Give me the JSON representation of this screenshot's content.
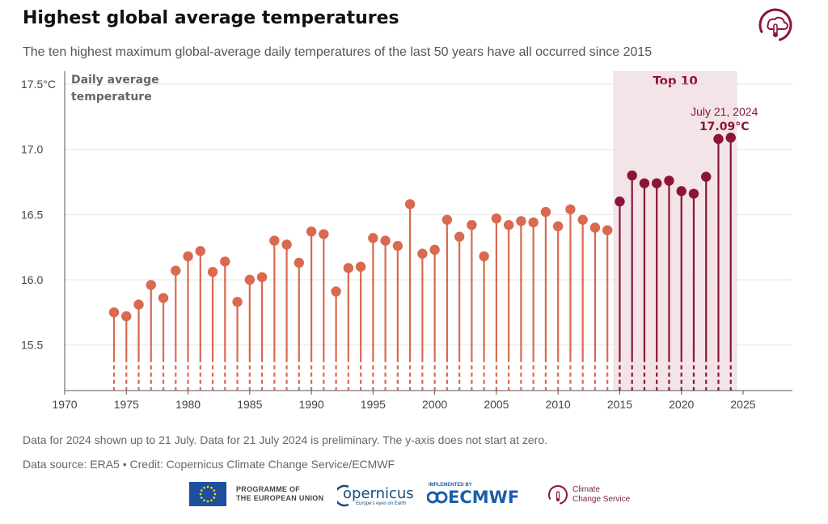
{
  "header": {
    "title": "Highest global average temperatures",
    "subtitle": "The ten highest maximum global-average daily temperatures of the last 50 years have all occurred since 2015"
  },
  "chart_data": {
    "type": "lollipop",
    "ylabel": "Daily average temperature",
    "ylabel_line1": "Daily average",
    "ylabel_line2": "temperature",
    "ylim": [
      15.15,
      17.6
    ],
    "xlim": [
      1970,
      2029
    ],
    "yticks": [
      {
        "value": 15.5,
        "label": "15.5"
      },
      {
        "value": 16.0,
        "label": "16.0"
      },
      {
        "value": 16.5,
        "label": "16.5"
      },
      {
        "value": 17.0,
        "label": "17.0"
      },
      {
        "value": 17.5,
        "label": "17.5°C"
      }
    ],
    "xticks": [
      1970,
      1975,
      1980,
      1985,
      1990,
      1995,
      2000,
      2005,
      2010,
      2015,
      2020,
      2025
    ],
    "top10_label": "Top 10",
    "top10_range": [
      2015,
      2024
    ],
    "highlight": {
      "date": "July 21, 2024",
      "value_label": "17.09°C",
      "year": 2024
    },
    "colors": {
      "regular": "#d9694f",
      "top10": "#8b1538",
      "band": "#f3e4e7",
      "grid": "#e6e6e6"
    },
    "points": [
      {
        "year": 1974,
        "value": 15.75
      },
      {
        "year": 1975,
        "value": 15.72
      },
      {
        "year": 1976,
        "value": 15.81
      },
      {
        "year": 1977,
        "value": 15.96
      },
      {
        "year": 1978,
        "value": 15.86
      },
      {
        "year": 1979,
        "value": 16.07
      },
      {
        "year": 1980,
        "value": 16.18
      },
      {
        "year": 1981,
        "value": 16.22
      },
      {
        "year": 1982,
        "value": 16.06
      },
      {
        "year": 1983,
        "value": 16.14
      },
      {
        "year": 1984,
        "value": 15.83
      },
      {
        "year": 1985,
        "value": 16.0
      },
      {
        "year": 1986,
        "value": 16.02
      },
      {
        "year": 1987,
        "value": 16.3
      },
      {
        "year": 1988,
        "value": 16.27
      },
      {
        "year": 1989,
        "value": 16.13
      },
      {
        "year": 1990,
        "value": 16.37
      },
      {
        "year": 1991,
        "value": 16.35
      },
      {
        "year": 1992,
        "value": 15.91
      },
      {
        "year": 1993,
        "value": 16.09
      },
      {
        "year": 1994,
        "value": 16.1
      },
      {
        "year": 1995,
        "value": 16.32
      },
      {
        "year": 1996,
        "value": 16.3
      },
      {
        "year": 1997,
        "value": 16.26
      },
      {
        "year": 1998,
        "value": 16.58
      },
      {
        "year": 1999,
        "value": 16.2
      },
      {
        "year": 2000,
        "value": 16.23
      },
      {
        "year": 2001,
        "value": 16.46
      },
      {
        "year": 2002,
        "value": 16.33
      },
      {
        "year": 2003,
        "value": 16.42
      },
      {
        "year": 2004,
        "value": 16.18
      },
      {
        "year": 2005,
        "value": 16.47
      },
      {
        "year": 2006,
        "value": 16.42
      },
      {
        "year": 2007,
        "value": 16.45
      },
      {
        "year": 2008,
        "value": 16.44
      },
      {
        "year": 2009,
        "value": 16.52
      },
      {
        "year": 2010,
        "value": 16.41
      },
      {
        "year": 2011,
        "value": 16.54
      },
      {
        "year": 2012,
        "value": 16.46
      },
      {
        "year": 2013,
        "value": 16.4
      },
      {
        "year": 2014,
        "value": 16.38
      },
      {
        "year": 2015,
        "value": 16.6
      },
      {
        "year": 2016,
        "value": 16.8
      },
      {
        "year": 2017,
        "value": 16.74
      },
      {
        "year": 2018,
        "value": 16.74
      },
      {
        "year": 2019,
        "value": 16.76
      },
      {
        "year": 2020,
        "value": 16.68
      },
      {
        "year": 2021,
        "value": 16.66
      },
      {
        "year": 2022,
        "value": 16.79
      },
      {
        "year": 2023,
        "value": 17.08
      },
      {
        "year": 2024,
        "value": 17.09
      }
    ]
  },
  "notes": {
    "line1": "Data for 2024 shown up to 21 July. Data for 21 July 2024 is preliminary. The y-axis does not start at zero.",
    "line2": "Data source: ERA5 • Credit: Copernicus Climate Change Service/ECMWF"
  },
  "footer": {
    "eu_line1": "PROGRAMME OF",
    "eu_line2": "THE EUROPEAN UNION",
    "copernicus": "opernicus",
    "copernicus_sub": "Europe's eyes on Earth",
    "implemented": "IMPLEMENTED BY",
    "ecmwf": "ECMWF",
    "c3s_line1": "Climate",
    "c3s_line2": "Change Service"
  }
}
